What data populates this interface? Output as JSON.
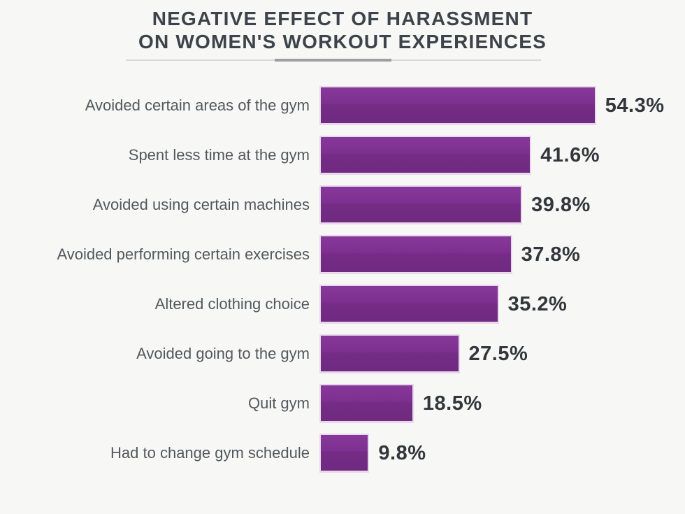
{
  "title": {
    "line1": "NEGATIVE EFFECT OF HARASSMENT",
    "line2": "ON WOMEN'S WORKOUT EXPERIENCES"
  },
  "chart_data": {
    "type": "bar",
    "orientation": "horizontal",
    "title": "NEGATIVE EFFECT OF HARASSMENT ON WOMEN'S WORKOUT EXPERIENCES",
    "categories": [
      "Avoided certain areas of the gym",
      "Spent less time at the gym",
      "Avoided using certain machines",
      "Avoided performing certain exercises",
      "Altered clothing choice",
      "Avoided going to the gym",
      "Quit gym",
      "Had to change gym schedule"
    ],
    "values": [
      54.3,
      41.6,
      39.8,
      37.8,
      35.2,
      27.5,
      18.5,
      9.8
    ],
    "value_labels": [
      "54.3%",
      "41.6%",
      "39.8%",
      "37.8%",
      "35.2%",
      "27.5%",
      "18.5%",
      "9.8%"
    ],
    "unit": "%",
    "xlim": [
      0,
      60
    ],
    "grid": false,
    "legend_position": "none",
    "data_labels": "outside-end",
    "colors": {
      "bar_fill": "#7c2f8d",
      "bar_fill_top": "#87399b",
      "bar_fill_bottom": "#702a80",
      "bar_edge": "#e9d8ec",
      "title_text": "#3d434a",
      "category_text": "#54585d",
      "value_text": "#33373c",
      "background": "#f7f7f6",
      "divider_light": "#d8dad9",
      "divider_dark": "#9ba0a3"
    }
  }
}
